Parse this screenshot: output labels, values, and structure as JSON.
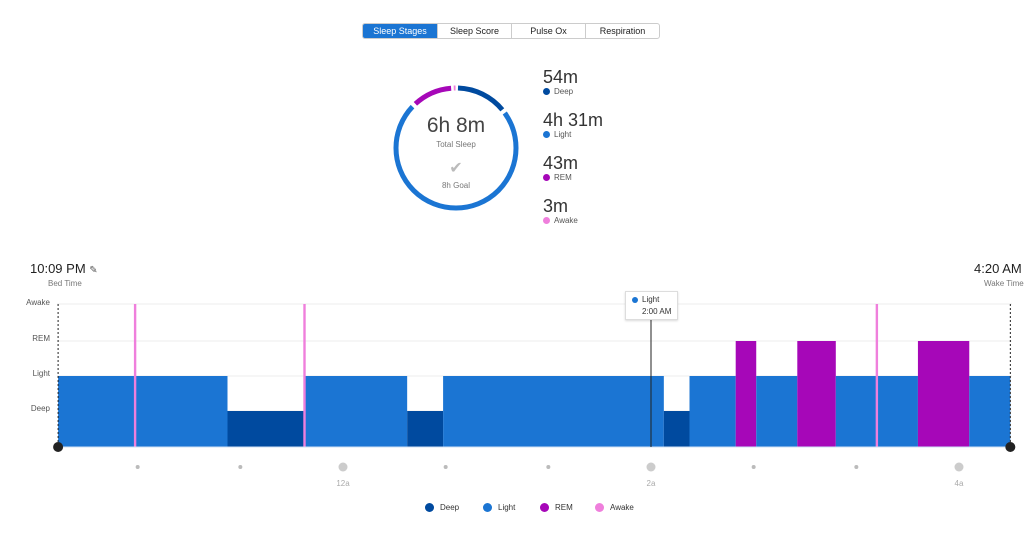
{
  "tabs": [
    {
      "label": "Sleep Stages",
      "active": true
    },
    {
      "label": "Sleep Score"
    },
    {
      "label": "Pulse Ox"
    },
    {
      "label": "Respiration"
    }
  ],
  "colors": {
    "deep": "#004a9f",
    "light": "#1b75d3",
    "rem": "#a607b8",
    "awake": "#ef7fdc"
  },
  "summary": {
    "total": "6h 8m",
    "total_label": "Total Sleep",
    "goal_icon": "check-icon",
    "goal": "8h Goal"
  },
  "stats": [
    {
      "value": "54m",
      "label": "Deep",
      "minutes": 54,
      "color": "#004a9f"
    },
    {
      "value": "4h 31m",
      "label": "Light",
      "minutes": 271,
      "color": "#1b75d3"
    },
    {
      "value": "43m",
      "label": "REM",
      "minutes": 43,
      "color": "#a607b8"
    },
    {
      "value": "3m",
      "label": "Awake",
      "minutes": 3,
      "color": "#ef7fdc"
    }
  ],
  "bed_time": {
    "value": "10:09 PM",
    "label": "Bed Time"
  },
  "wake_time": {
    "value": "4:20 AM",
    "label": "Wake Time"
  },
  "chart_data": {
    "type": "step",
    "y_categories": [
      "Deep",
      "Light",
      "REM",
      "Awake"
    ],
    "x_ticks": [
      "12a",
      "2a",
      "4a"
    ],
    "segments": [
      {
        "stage": "Light",
        "start": "10:09 PM",
        "end": "11:15 PM"
      },
      {
        "stage": "Deep",
        "start": "11:15 PM",
        "end": "11:45 PM"
      },
      {
        "stage": "Light",
        "start": "11:45 PM",
        "end": "12:25 AM"
      },
      {
        "stage": "Deep",
        "start": "12:25 AM",
        "end": "12:39 AM"
      },
      {
        "stage": "Light",
        "start": "12:39 AM",
        "end": "2:05 AM"
      },
      {
        "stage": "Deep",
        "start": "2:05 AM",
        "end": "2:15 AM"
      },
      {
        "stage": "Light",
        "start": "2:15 AM",
        "end": "2:33 AM"
      },
      {
        "stage": "REM",
        "start": "2:33 AM",
        "end": "2:41 AM"
      },
      {
        "stage": "Light",
        "start": "2:41 AM",
        "end": "2:57 AM"
      },
      {
        "stage": "REM",
        "start": "2:57 AM",
        "end": "3:12 AM"
      },
      {
        "stage": "Light",
        "start": "3:12 AM",
        "end": "3:44 AM"
      },
      {
        "stage": "REM",
        "start": "3:44 AM",
        "end": "4:04 AM"
      },
      {
        "stage": "Light",
        "start": "4:04 AM",
        "end": "4:20 AM"
      }
    ],
    "awake_marks": [
      "10:39 PM",
      "11:45 PM",
      "3:28 AM"
    ],
    "tooltip": {
      "stage": "Light",
      "time": "2:00 AM"
    }
  }
}
